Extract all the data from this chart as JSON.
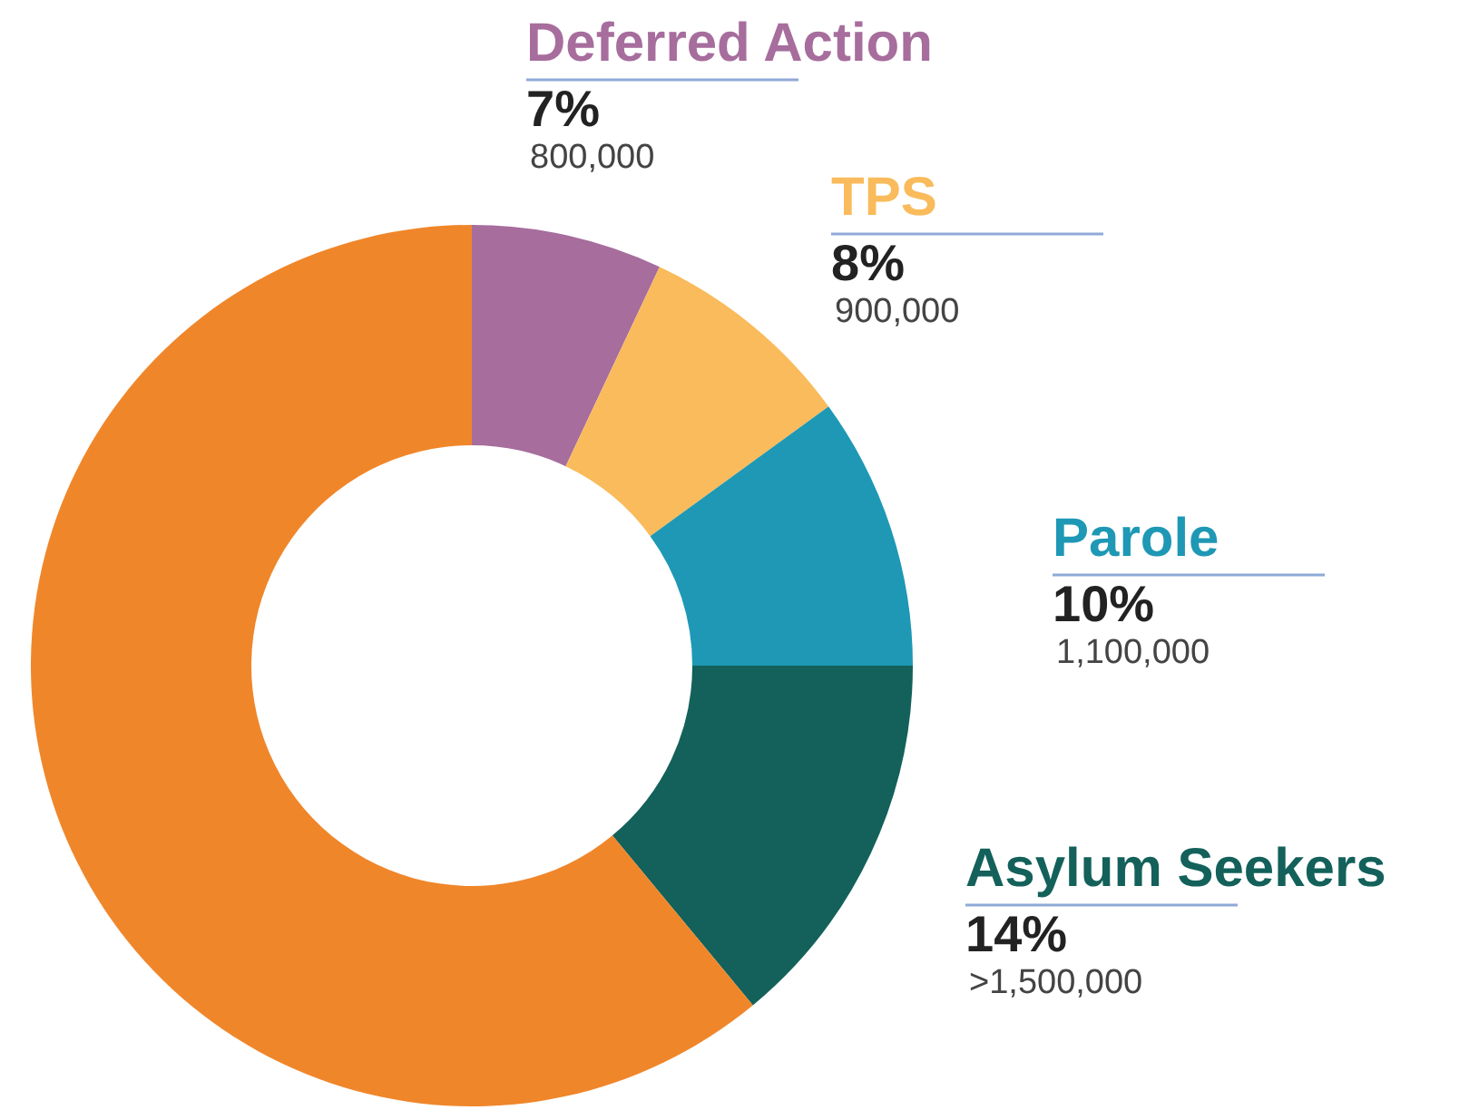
{
  "chart_data": {
    "type": "donut",
    "categories": [
      "Deferred Action",
      "TPS",
      "Parole",
      "Asylum Seekers",
      null
    ],
    "values": [
      7,
      8,
      10,
      14,
      61
    ],
    "colors": [
      "#a66d9d",
      "#f9bb5b",
      "#1e98b5",
      "#13615a",
      "#f0862a"
    ],
    "value_labels": [
      "7%\n800,000",
      "8%\n900,000",
      "10%\n1,100,000",
      "14%\n>1,500,000",
      null
    ],
    "legend": false
  }
}
